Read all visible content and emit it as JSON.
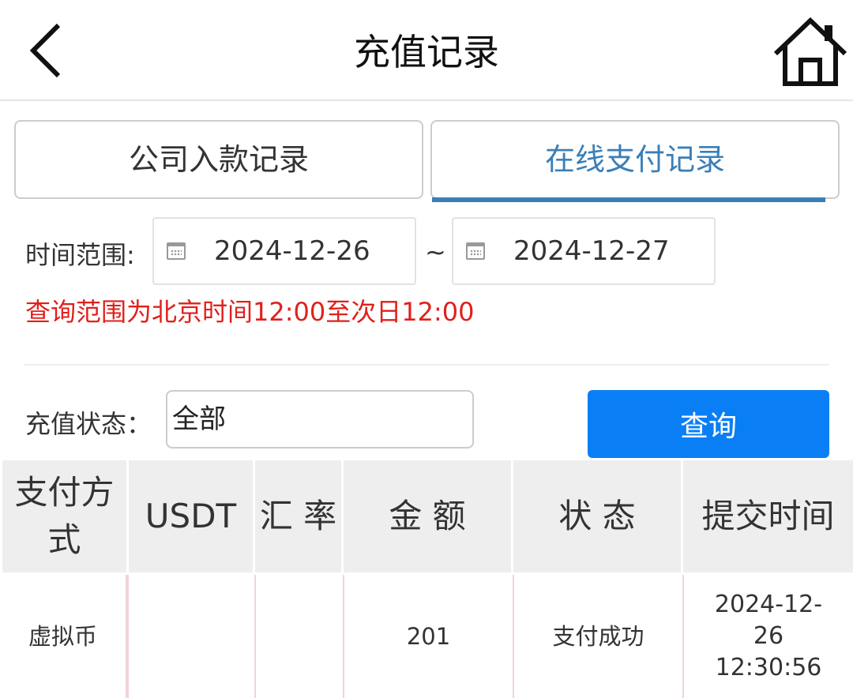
{
  "header": {
    "title": "充值记录",
    "back_icon": "chevron-left-icon",
    "home_icon": "home-icon"
  },
  "tabs": [
    {
      "label": "公司入款记录",
      "active": false
    },
    {
      "label": "在线支付记录",
      "active": true
    }
  ],
  "filters": {
    "time_range_label": "时间范围:",
    "start_date": "2024-12-26",
    "separator": "~",
    "end_date": "2024-12-27",
    "notice": "查询范围为北京时间12:00至次日12:00",
    "status_label": "充值状态：",
    "status_value": "全部",
    "query_button": "查询"
  },
  "colors": {
    "accent": "#0a7ff5",
    "tab_active": "#3a7fb8",
    "notice": "#e0201c"
  },
  "table": {
    "headers": [
      "支付方式",
      "USDT",
      "汇 率",
      "金 额",
      "状 态",
      "提交时间"
    ],
    "rows": [
      [
        "虚拟币",
        "",
        "",
        "201",
        "支付成功",
        "2024-12-26 12:30:56"
      ]
    ]
  }
}
